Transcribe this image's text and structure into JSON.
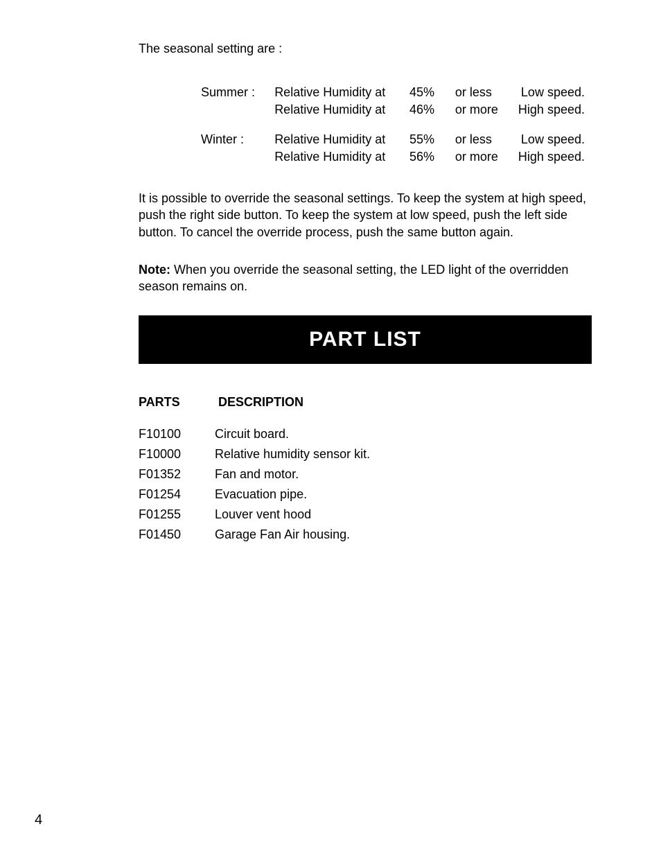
{
  "intro": "The seasonal setting are :",
  "settings": {
    "rows": [
      {
        "season": "Summer :",
        "desc": "Relative Humidity at",
        "pct": "45%",
        "cond": "or less",
        "speed": "Low speed."
      },
      {
        "season": "",
        "desc": "Relative Humidity at",
        "pct": "46%",
        "cond": "or more",
        "speed": "High speed."
      },
      {
        "gap": true
      },
      {
        "season": "Winter :",
        "desc": "Relative Humidity at",
        "pct": "55%",
        "cond": "or less",
        "speed": "Low speed."
      },
      {
        "season": "",
        "desc": "Relative Humidity at",
        "pct": "56%",
        "cond": "or more",
        "speed": "High speed."
      }
    ]
  },
  "override_para": "It is possible to override the seasonal settings. To keep the system at high speed, push the right side button. To keep the system at low speed, push the left side button. To cancel the override process, push the same button again.",
  "note_label": "Note:",
  "note_text": " When you override the seasonal setting, the LED light of the overridden season remains on.",
  "section_title": "PART LIST",
  "parts_header": {
    "parts": "PARTS",
    "desc": "DESCRIPTION"
  },
  "parts": [
    {
      "code": "F10100",
      "desc": "Circuit board."
    },
    {
      "code": "F10000",
      "desc": "Relative humidity sensor kit."
    },
    {
      "code": "F01352",
      "desc": "Fan and motor."
    },
    {
      "code": "F01254",
      "desc": "Evacuation pipe."
    },
    {
      "code": "F01255",
      "desc": "Louver vent hood"
    },
    {
      "code": "F01450",
      "desc": "Garage Fan Air housing."
    }
  ],
  "page_number": "4"
}
